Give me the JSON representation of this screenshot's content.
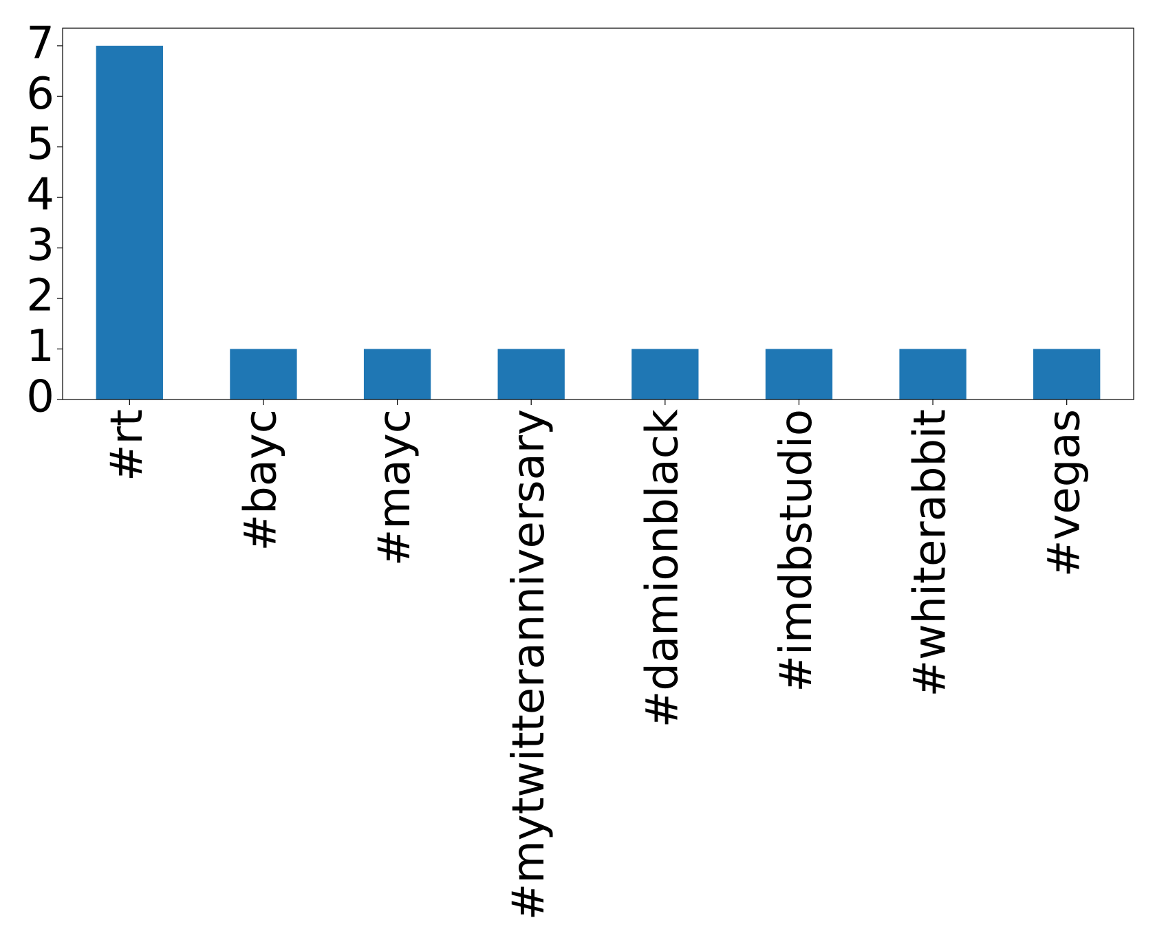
{
  "chart_data": {
    "type": "bar",
    "categories": [
      "#rt",
      "#bayc",
      "#mayc",
      "#mytwitteranniversary",
      "#damionblack",
      "#imdbstudio",
      "#whiterabbit",
      "#vegas"
    ],
    "values": [
      7,
      1,
      1,
      1,
      1,
      1,
      1,
      1
    ],
    "color": "#1f77b4",
    "ylim": [
      0,
      7.35
    ],
    "yticks": [
      0,
      1,
      2,
      3,
      4,
      5,
      6,
      7
    ],
    "grid": false
  }
}
